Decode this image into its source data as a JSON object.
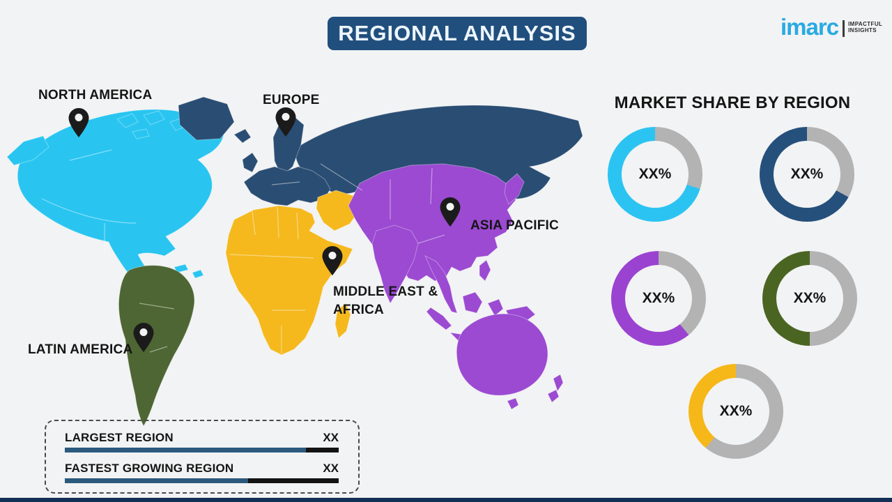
{
  "page": {
    "title": "REGIONAL ANALYSIS",
    "banner_color": "#214f7d",
    "background_color": "#f2f3f4"
  },
  "logo": {
    "brand": "imarc",
    "brand_color": "#29aae3",
    "tagline_line1": "IMPACTFUL",
    "tagline_line2": "INSIGHTS"
  },
  "map": {
    "regions": [
      {
        "id": "north-america",
        "label": "NORTH AMERICA",
        "color": "#29c5f0"
      },
      {
        "id": "europe",
        "label": "EUROPE",
        "color": "#2a4d73"
      },
      {
        "id": "asia-pacific",
        "label": "ASIA PACIFIC",
        "color": "#9b4ad1"
      },
      {
        "id": "middle-east-africa",
        "label": "MIDDLE EAST &\nAFRICA",
        "color": "#f5b91e"
      },
      {
        "id": "latin-america",
        "label": "LATIN AMERICA",
        "color": "#4d6633"
      }
    ]
  },
  "market_share": {
    "heading": "MARKET SHARE BY REGION",
    "track_color": "#b3b3b3",
    "donuts": [
      {
        "region": "North America",
        "value": "XX%",
        "color": "#2bc4f2",
        "percent_filled": 70
      },
      {
        "region": "Europe",
        "value": "XX%",
        "color": "#26507c",
        "percent_filled": 67
      },
      {
        "region": "Asia Pacific",
        "value": "XX%",
        "color": "#9b43d1",
        "percent_filled": 61
      },
      {
        "region": "Latin America",
        "value": "XX%",
        "color": "#4a6522",
        "percent_filled": 50
      },
      {
        "region": "Middle East & Africa",
        "value": "XX%",
        "color": "#f6b719",
        "percent_filled": 39
      }
    ]
  },
  "legend": {
    "bar_color": "#2b5a7d",
    "bar_remainder_color": "#131313",
    "rows": [
      {
        "label": "LARGEST REGION",
        "value": "XX",
        "fill_percent": 88
      },
      {
        "label": "FASTEST GROWING REGION",
        "value": "XX",
        "fill_percent": 67
      }
    ]
  }
}
